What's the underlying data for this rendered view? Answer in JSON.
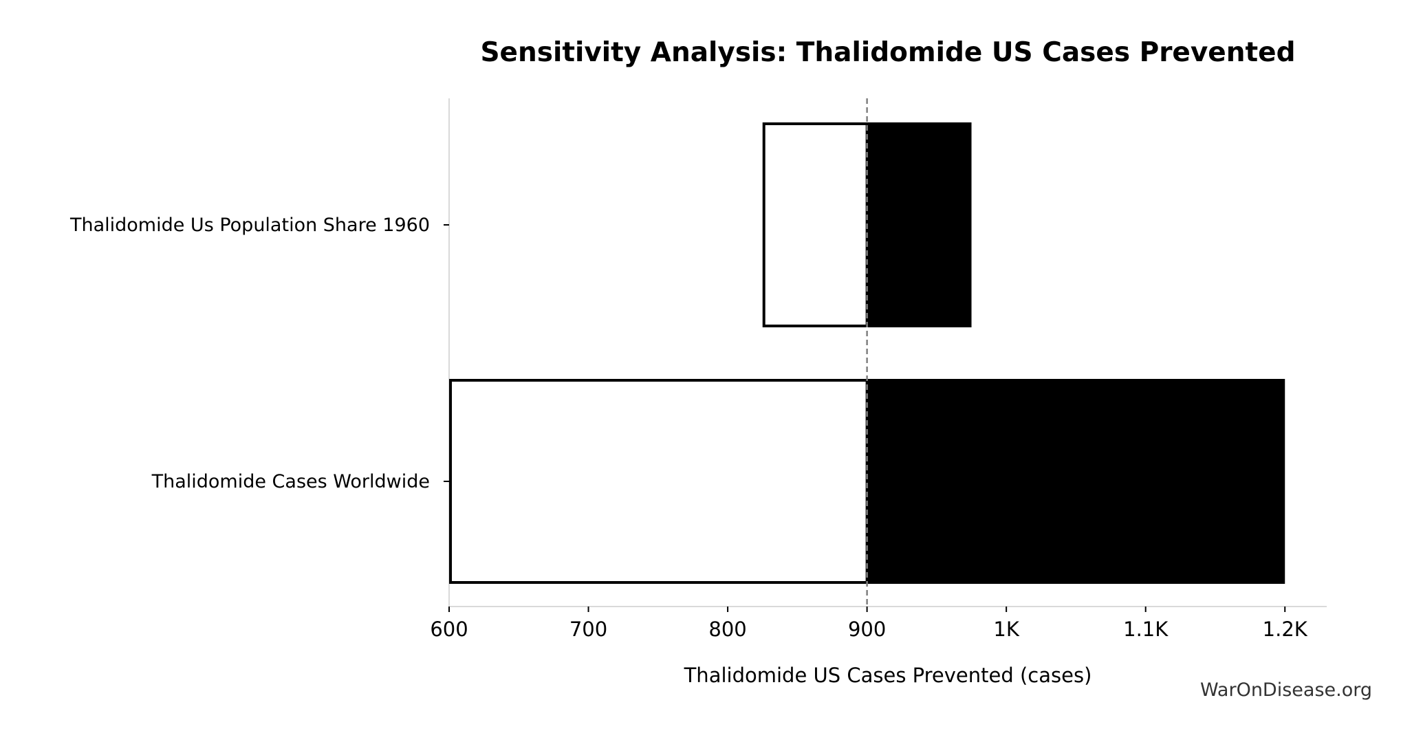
{
  "chart_data": {
    "type": "bar",
    "subtype": "tornado",
    "title": "Sensitivity Analysis: Thalidomide US Cases Prevented",
    "xlabel": "Thalidomide US Cases Prevented (cases)",
    "ylabel": "",
    "xlim": [
      600,
      1230
    ],
    "baseline": 900,
    "xticks": [
      600,
      700,
      800,
      900,
      1000,
      1100,
      1200
    ],
    "xtick_labels": [
      "600",
      "700",
      "800",
      "900",
      "1K",
      "1.1K",
      "1.2K"
    ],
    "categories": [
      "Thalidomide Us Population Share 1960",
      "Thalidomide Cases Worldwide"
    ],
    "series": [
      {
        "name": "low",
        "values": [
          825,
          600
        ],
        "color": "#ffffff"
      },
      {
        "name": "high",
        "values": [
          975,
          1200
        ],
        "color": "#000000"
      }
    ],
    "grid": false,
    "watermark": "WarOnDisease.org"
  }
}
